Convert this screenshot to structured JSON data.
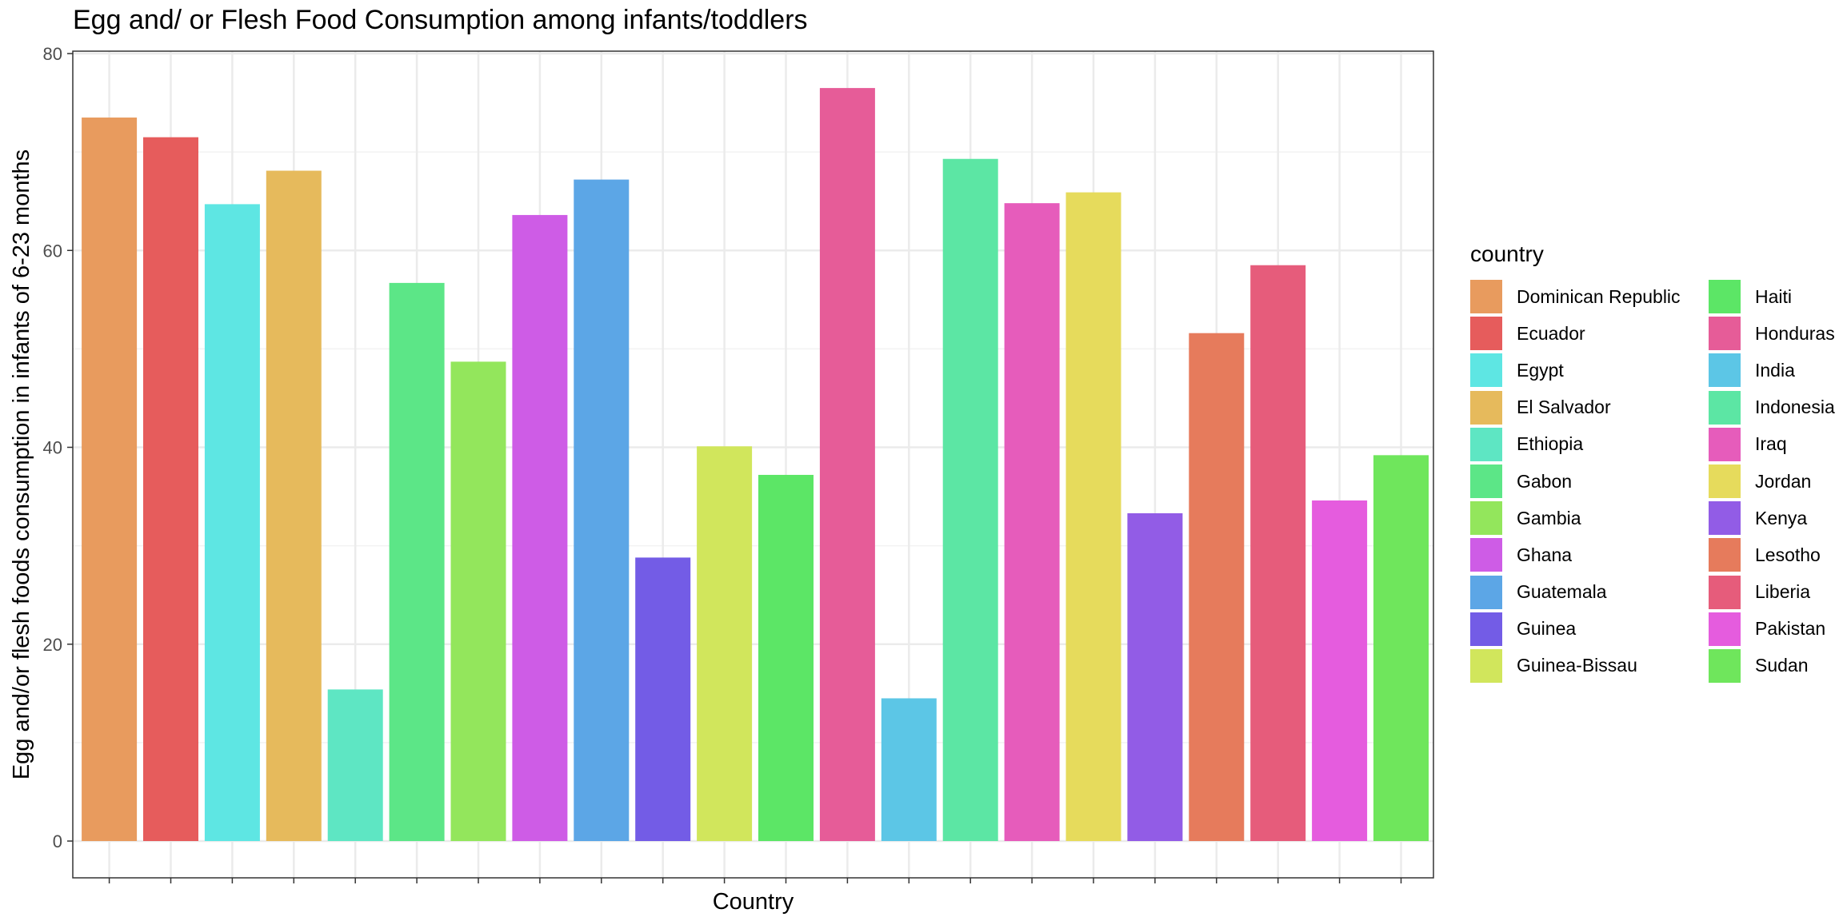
{
  "chart_data": {
    "type": "bar",
    "title": "Egg and/ or Flesh Food Consumption among infants/toddlers",
    "xlabel": "Country",
    "ylabel": "Egg and/or flesh foods consumption in infants of 6-23 months",
    "ylim": [
      0,
      80
    ],
    "y_ticks": [
      0,
      20,
      40,
      60,
      80
    ],
    "grid": true,
    "legend_title": "country",
    "legend_position": "right",
    "categories": [
      "Dominican Republic",
      "Ecuador",
      "Egypt",
      "El Salvador",
      "Ethiopia",
      "Gabon",
      "Gambia",
      "Ghana",
      "Guatemala",
      "Guinea",
      "Guinea-Bissau",
      "Haiti",
      "Honduras",
      "India",
      "Indonesia",
      "Iraq",
      "Jordan",
      "Kenya",
      "Lesotho",
      "Liberia",
      "Pakistan",
      "Sudan"
    ],
    "values": [
      73.5,
      71.5,
      64.7,
      68.1,
      15.4,
      56.7,
      48.7,
      63.6,
      67.2,
      28.8,
      40.1,
      37.2,
      76.5,
      14.5,
      69.3,
      64.8,
      65.9,
      33.3,
      51.6,
      58.5,
      34.6,
      39.2
    ],
    "colors": [
      "#E89B5E",
      "#E65C5C",
      "#5EE6E3",
      "#E6BA5C",
      "#5EE6C3",
      "#5CE687",
      "#93E65C",
      "#CE5CE6",
      "#5CA6E6",
      "#735CE6",
      "#D1E65C",
      "#5CE666",
      "#E65C98",
      "#5CC6E6",
      "#5CE6A4",
      "#E65CBB",
      "#E6DB5C",
      "#925CE6",
      "#E67B5C",
      "#E65C7B",
      "#E55CDE",
      "#6FE65C"
    ]
  }
}
